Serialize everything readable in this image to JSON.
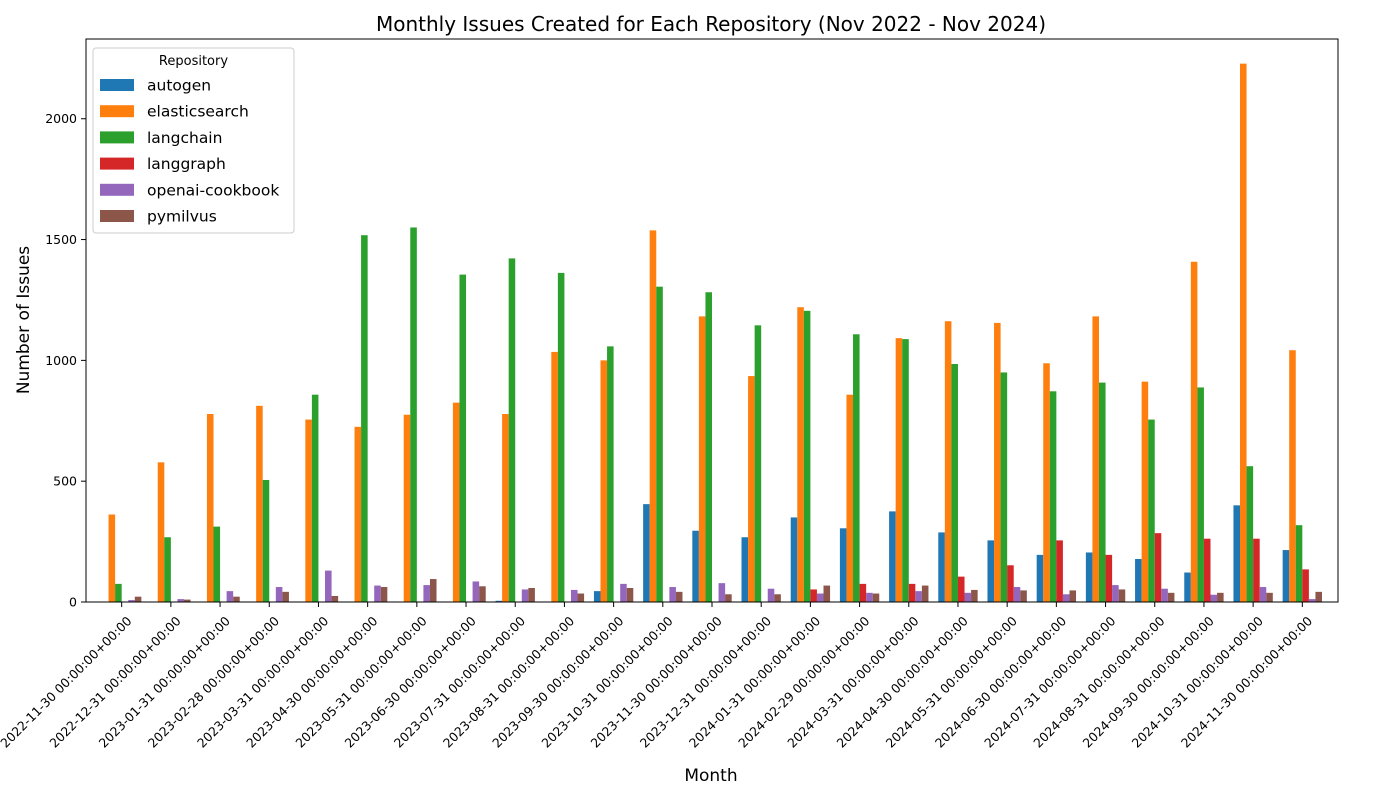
{
  "chart_data": {
    "type": "bar",
    "title": "Monthly Issues Created for Each Repository (Nov 2022 - Nov 2024)",
    "xlabel": "Month",
    "ylabel": "Number of Issues",
    "ylim": [
      0,
      2330
    ],
    "yticks": [
      0,
      500,
      1000,
      1500,
      2000
    ],
    "legend": {
      "title": "Repository",
      "position": "top-left"
    },
    "categories": [
      "2022-11-30 00:00:00+00:00",
      "2022-12-31 00:00:00+00:00",
      "2023-01-31 00:00:00+00:00",
      "2023-02-28 00:00:00+00:00",
      "2023-03-31 00:00:00+00:00",
      "2023-04-30 00:00:00+00:00",
      "2023-05-31 00:00:00+00:00",
      "2023-06-30 00:00:00+00:00",
      "2023-07-31 00:00:00+00:00",
      "2023-08-31 00:00:00+00:00",
      "2023-09-30 00:00:00+00:00",
      "2023-10-31 00:00:00+00:00",
      "2023-11-30 00:00:00+00:00",
      "2023-12-31 00:00:00+00:00",
      "2024-01-31 00:00:00+00:00",
      "2024-02-29 00:00:00+00:00",
      "2024-03-31 00:00:00+00:00",
      "2024-04-30 00:00:00+00:00",
      "2024-05-31 00:00:00+00:00",
      "2024-06-30 00:00:00+00:00",
      "2024-07-31 00:00:00+00:00",
      "2024-08-31 00:00:00+00:00",
      "2024-09-30 00:00:00+00:00",
      "2024-10-31 00:00:00+00:00",
      "2024-11-30 00:00:00+00:00"
    ],
    "series": [
      {
        "name": "autogen",
        "color": "#1f77b4",
        "values": [
          0,
          0,
          0,
          0,
          0,
          0,
          0,
          0,
          5,
          0,
          45,
          405,
          295,
          268,
          350,
          305,
          375,
          288,
          255,
          195,
          205,
          178,
          122,
          400,
          215
        ]
      },
      {
        "name": "elasticsearch",
        "color": "#ff7f0e",
        "values": [
          362,
          578,
          778,
          812,
          755,
          725,
          775,
          825,
          778,
          1035,
          1000,
          1538,
          1182,
          935,
          1220,
          858,
          1092,
          1162,
          1155,
          988,
          1182,
          912,
          1408,
          2228,
          1042
        ]
      },
      {
        "name": "langchain",
        "color": "#2ca02c",
        "values": [
          75,
          268,
          312,
          505,
          858,
          1518,
          1550,
          1355,
          1422,
          1362,
          1058,
          1305,
          1282,
          1145,
          1205,
          1108,
          1088,
          985,
          950,
          872,
          908,
          755,
          888,
          562,
          318
        ]
      },
      {
        "name": "langgraph",
        "color": "#d62728",
        "values": [
          0,
          0,
          0,
          0,
          0,
          0,
          0,
          0,
          0,
          0,
          0,
          0,
          0,
          0,
          52,
          75,
          75,
          105,
          152,
          255,
          195,
          285,
          262,
          262,
          135
        ]
      },
      {
        "name": "openai-cookbook",
        "color": "#9467bd",
        "values": [
          8,
          12,
          45,
          62,
          130,
          68,
          70,
          85,
          52,
          50,
          75,
          62,
          78,
          55,
          35,
          38,
          45,
          38,
          62,
          32,
          70,
          55,
          30,
          62,
          12
        ]
      },
      {
        "name": "pymilvus",
        "color": "#8c564b",
        "values": [
          22,
          10,
          22,
          42,
          25,
          62,
          95,
          65,
          58,
          35,
          58,
          42,
          32,
          32,
          68,
          35,
          68,
          50,
          48,
          48,
          52,
          38,
          38,
          38,
          42
        ]
      }
    ]
  }
}
